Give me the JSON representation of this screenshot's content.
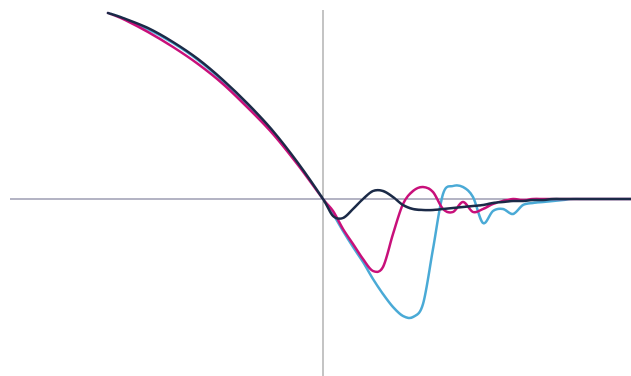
{
  "chart_data": {
    "type": "line",
    "x": [
      -2.15,
      -2,
      -1.75,
      -1.5,
      -1.25,
      -1,
      -0.75,
      -0.5,
      -0.25,
      0,
      0.1,
      0.2,
      0.3,
      0.4,
      0.5,
      0.6,
      0.7,
      0.8,
      0.9,
      1,
      1.1,
      1.2,
      1.3,
      1.4,
      1.5,
      1.6,
      1.7,
      1.8,
      1.9,
      2,
      2.1,
      2.2,
      2.3,
      2.4,
      2.5,
      2.6,
      2.7,
      2.8,
      2.9,
      3,
      3.08
    ],
    "series": [
      {
        "color": "#4aaad6",
        "values": [
          1.86,
          1.81,
          1.7,
          1.56,
          1.39,
          1.18,
          0.93,
          0.66,
          0.35,
          0,
          -0.15,
          -0.32,
          -0.48,
          -0.63,
          -0.8,
          -0.95,
          -1.08,
          -1.17,
          -1.18,
          -1.05,
          -0.5,
          0.05,
          0.13,
          0.12,
          0.02,
          -0.24,
          -0.12,
          -0.1,
          -0.15,
          -0.06,
          -0.04,
          -0.03,
          -0.02,
          -0.01,
          0,
          0,
          0,
          0,
          0,
          0,
          0
        ]
      },
      {
        "color": "#c8107a",
        "values": [
          1.86,
          1.8,
          1.67,
          1.52,
          1.35,
          1.15,
          0.91,
          0.65,
          0.34,
          0,
          -0.12,
          -0.3,
          -0.45,
          -0.6,
          -0.72,
          -0.68,
          -0.35,
          -0.05,
          0.08,
          0.12,
          0.07,
          -0.1,
          -0.13,
          -0.03,
          -0.13,
          -0.1,
          -0.05,
          -0.02,
          0,
          -0.01,
          0,
          0,
          0,
          0,
          0,
          0,
          0,
          0,
          0,
          0,
          0
        ]
      },
      {
        "color": "#1b2a47",
        "values": [
          1.86,
          1.81,
          1.71,
          1.57,
          1.4,
          1.19,
          0.95,
          0.68,
          0.36,
          0,
          -0.17,
          -0.19,
          -0.1,
          0,
          0.08,
          0.08,
          0.02,
          -0.06,
          -0.1,
          -0.11,
          -0.11,
          -0.1,
          -0.09,
          -0.08,
          -0.07,
          -0.06,
          -0.04,
          -0.03,
          -0.02,
          -0.02,
          -0.01,
          -0.01,
          0,
          0,
          0,
          0,
          0,
          0,
          0,
          0,
          0
        ]
      }
    ],
    "xlim": [
      -3.23,
      3.08
    ],
    "ylim": [
      -1.77,
      1.99
    ]
  }
}
